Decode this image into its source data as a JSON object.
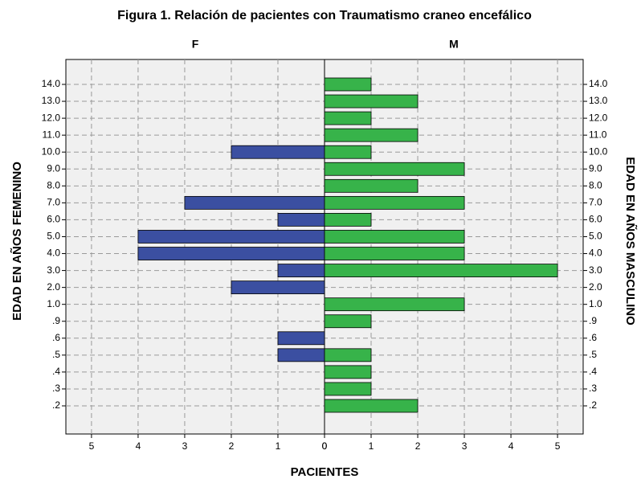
{
  "chart_data": {
    "type": "bar",
    "orientation": "horizontal",
    "layout": "pyramid",
    "title": "Figura  1. Relación de pacientes con Traumatismo craneo encefálico",
    "x_label": "PACIENTES",
    "y_label_left": "EDAD EN AÑOS FEMENINO",
    "y_label_right": "EDAD EN AÑOS MASCULINO",
    "categories": [
      "14.0",
      "13.0",
      "12.0",
      "11.0",
      "10.0",
      "9.0",
      "8.0",
      "7.0",
      "6.0",
      "5.0",
      "4.0",
      "3.0",
      "2.0",
      "1.0",
      ".9",
      ".6",
      ".5",
      ".4",
      ".3",
      ".2"
    ],
    "series": [
      {
        "name": "F",
        "color": "#3b4fa1",
        "values": [
          0,
          0,
          0,
          0,
          2,
          0,
          0,
          3,
          1,
          4,
          4,
          1,
          2,
          0,
          0,
          1,
          1,
          0,
          0,
          0
        ]
      },
      {
        "name": "M",
        "color": "#37b34a",
        "values": [
          1,
          2,
          1,
          2,
          1,
          3,
          2,
          3,
          1,
          3,
          3,
          5,
          0,
          3,
          1,
          0,
          1,
          1,
          1,
          2
        ]
      }
    ],
    "xlim": [
      0,
      5.55
    ],
    "xticks": [
      0,
      1,
      2,
      3,
      4,
      5
    ],
    "grid": true
  }
}
